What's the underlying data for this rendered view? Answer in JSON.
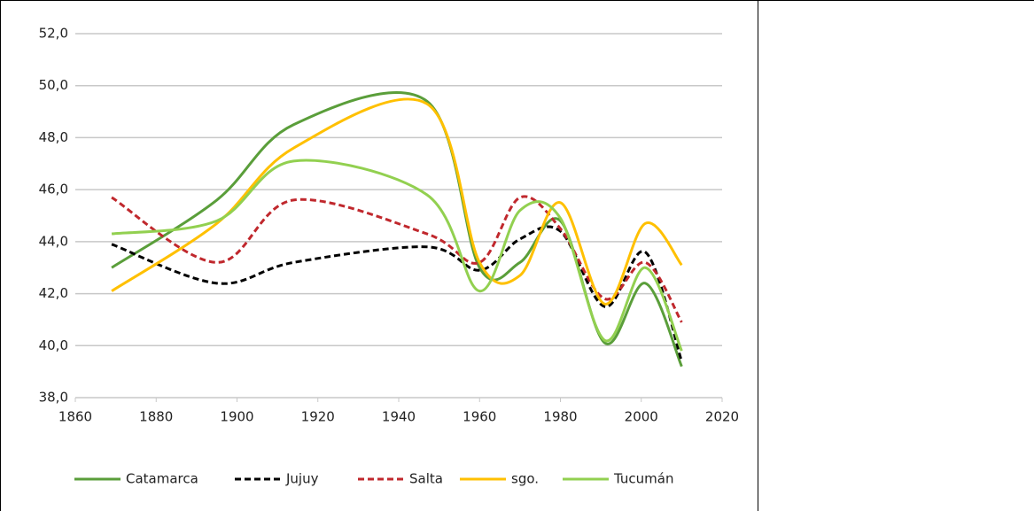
{
  "chart_data": {
    "type": "line",
    "x": [
      1869,
      1895,
      1914,
      1947,
      1960,
      1970,
      1980,
      1991,
      2001,
      2010
    ],
    "series": [
      {
        "name": "Catamarca",
        "color": "#5a9e3a",
        "dashed": false,
        "values": [
          43.0,
          45.6,
          48.5,
          49.4,
          43.0,
          43.2,
          44.8,
          40.1,
          42.4,
          39.2
        ]
      },
      {
        "name": "Jujuy",
        "color": "#000000",
        "dashed": true,
        "values": [
          43.9,
          42.4,
          43.2,
          43.8,
          42.9,
          44.1,
          44.4,
          41.5,
          43.6,
          39.4
        ]
      },
      {
        "name": "Salta",
        "color": "#c0282d",
        "dashed": true,
        "values": [
          45.7,
          43.2,
          45.6,
          44.3,
          43.2,
          45.7,
          44.5,
          41.8,
          43.2,
          40.9
        ]
      },
      {
        "name": "sgo.",
        "color": "#ffc000",
        "dashed": false,
        "values": [
          42.1,
          44.7,
          47.6,
          49.3,
          43.2,
          42.7,
          45.5,
          41.6,
          44.7,
          43.1
        ]
      },
      {
        "name": "Tucumán",
        "color": "#92d050",
        "dashed": false,
        "values": [
          44.3,
          44.8,
          47.1,
          45.8,
          42.1,
          45.2,
          44.9,
          40.2,
          43.0,
          39.8
        ]
      }
    ],
    "xlim": [
      1860,
      2020
    ],
    "xticks": [
      1860,
      1880,
      1900,
      1920,
      1940,
      1960,
      1980,
      2000,
      2020
    ],
    "ylim": [
      38,
      52
    ],
    "yticks": [
      {
        "value": 38,
        "label": "38,0"
      },
      {
        "value": 40,
        "label": "40,0"
      },
      {
        "value": 42,
        "label": "42,0"
      },
      {
        "value": 44,
        "label": "44,0"
      },
      {
        "value": 46,
        "label": "46,0"
      },
      {
        "value": 48,
        "label": "48,0"
      },
      {
        "value": 50,
        "label": "50,0"
      },
      {
        "value": 52,
        "label": "52,0"
      }
    ],
    "grid": true,
    "legend": "bottom"
  }
}
